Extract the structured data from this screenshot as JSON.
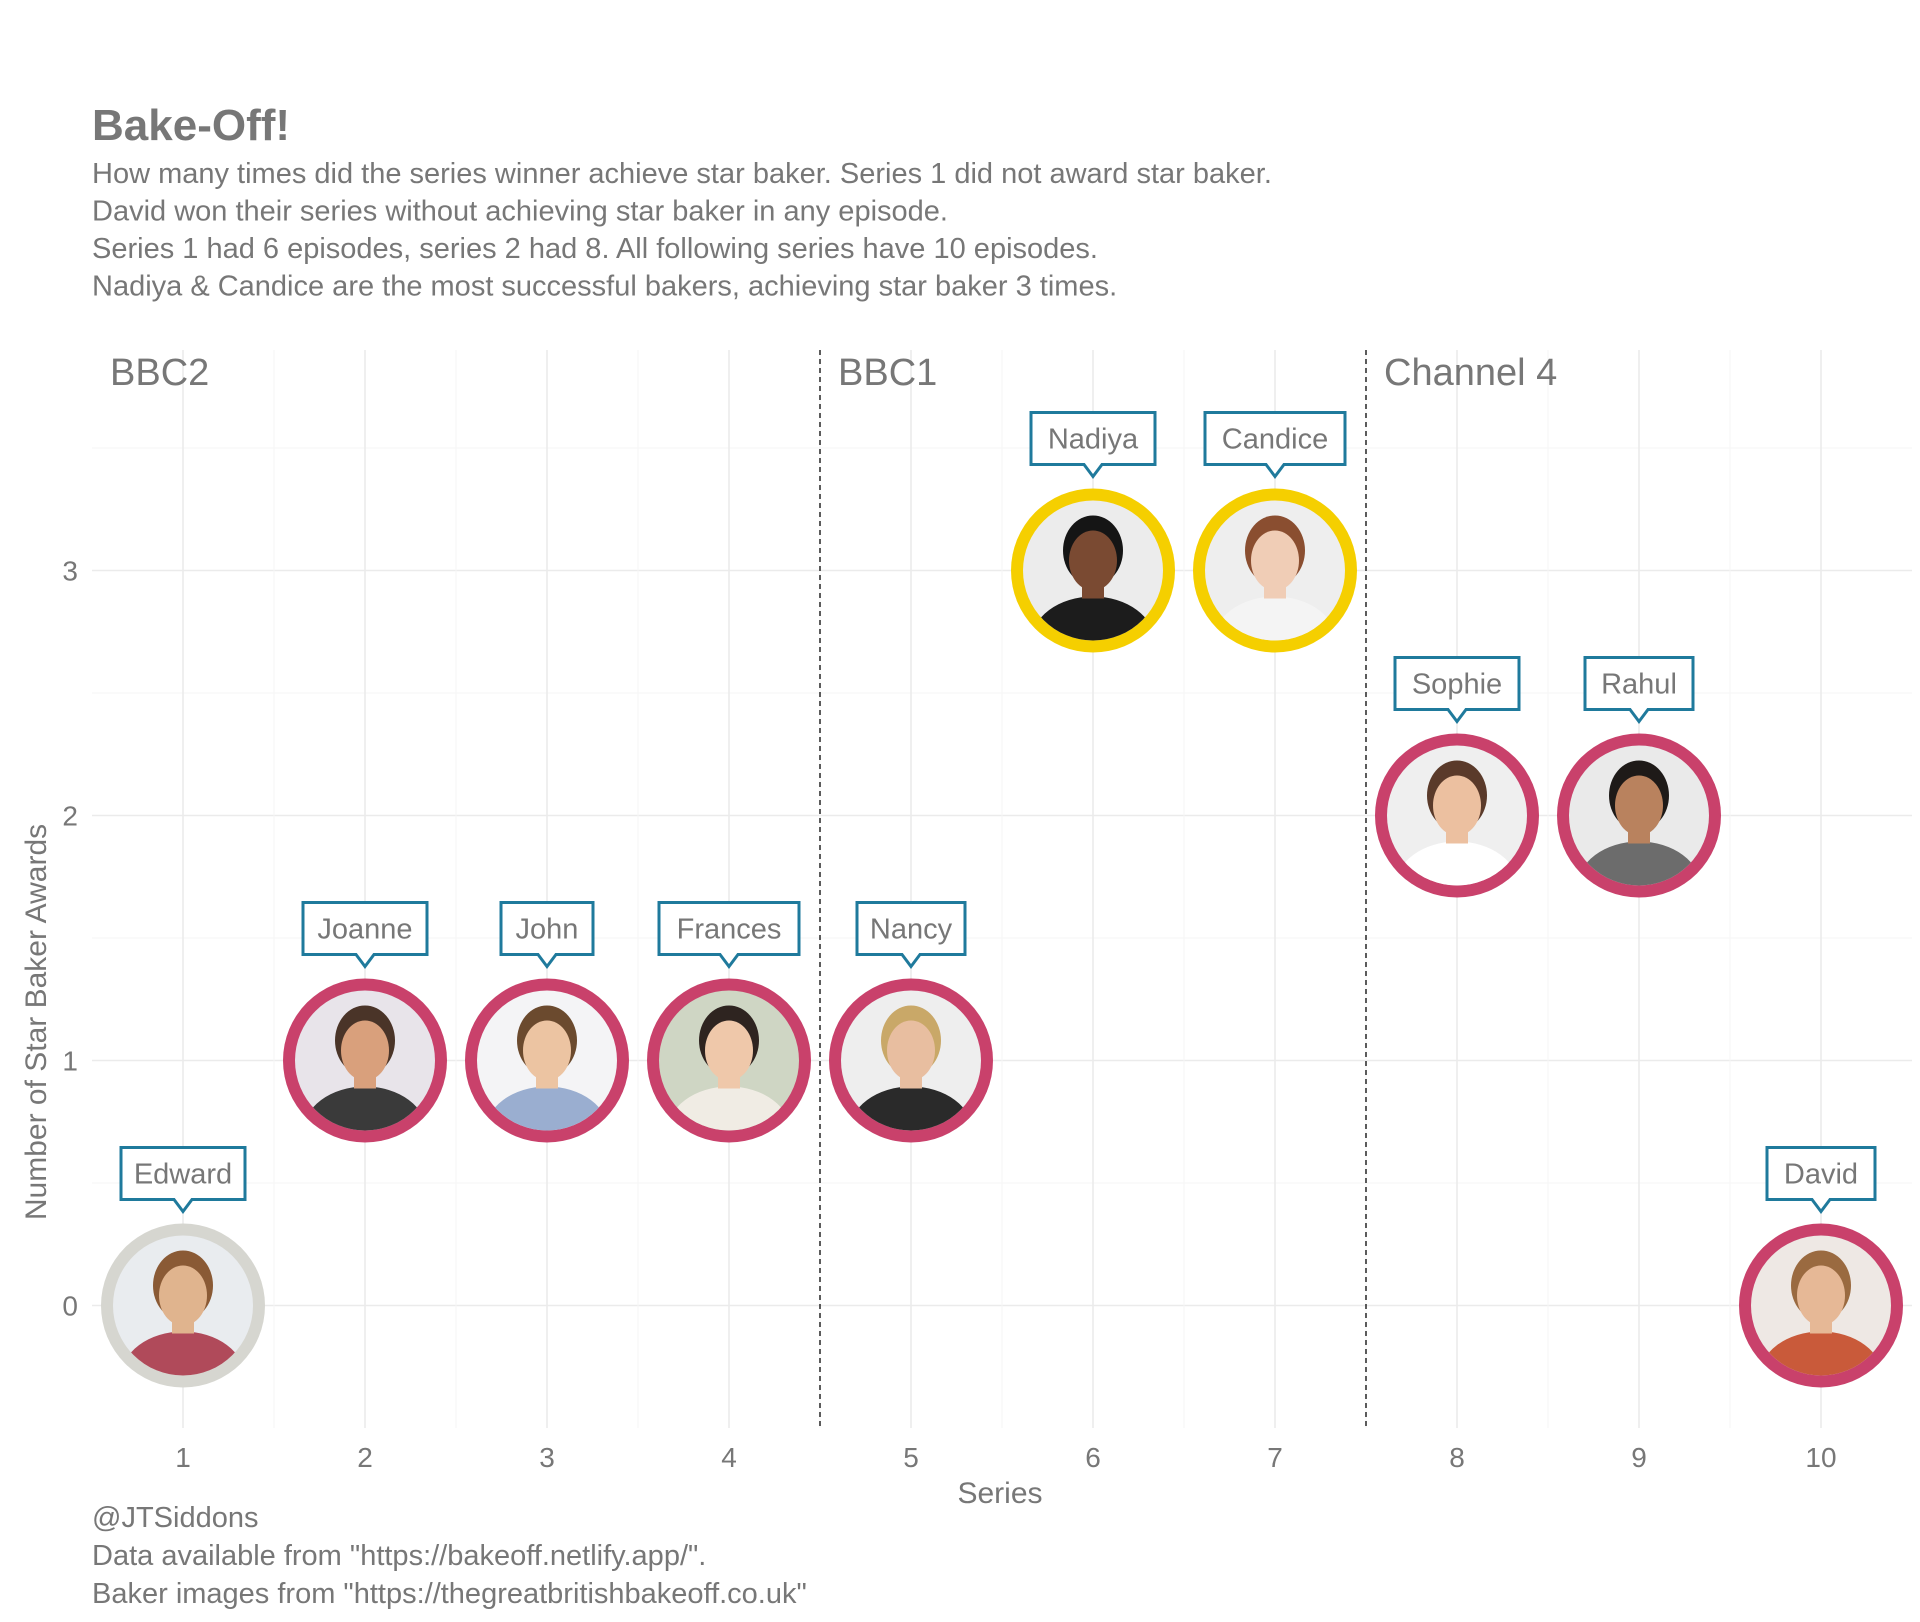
{
  "chart_data": {
    "type": "scatter",
    "title": "Bake-Off!",
    "subtitle": [
      "How many times did the series winner achieve star baker. Series 1 did not award star baker.",
      "David won their series without achieving star baker in any episode.",
      "Series 1 had 6 episodes, series 2 had 8. All following series have 10 episodes.",
      "Nadiya & Candice are the most successful bakers, achieving star baker 3 times."
    ],
    "xlabel": "Series",
    "ylabel": "Number of Star Baker Awards",
    "x_ticks": [
      1,
      2,
      3,
      4,
      5,
      6,
      7,
      8,
      9,
      10
    ],
    "y_ticks": [
      0,
      1,
      2,
      3
    ],
    "xlim": [
      0.5,
      10.5
    ],
    "ylim": [
      -0.5,
      3.9
    ],
    "grid": true,
    "channel_dividers": [
      4.5,
      7.5
    ],
    "channels": [
      {
        "label": "BBC2",
        "from_series": 1
      },
      {
        "label": "BBC1",
        "from_series": 5
      },
      {
        "label": "Channel 4",
        "from_series": 8
      }
    ],
    "points": [
      {
        "series": 1,
        "star_baker": 0,
        "name": "Edward",
        "ring": "#d6d6d0",
        "bg": "#e9ecef",
        "skin": "#e0b48e",
        "hair": "#8a5a35",
        "shirt": "#b04a5a"
      },
      {
        "series": 2,
        "star_baker": 1,
        "name": "Joanne",
        "ring": "#c9416b",
        "bg": "#e8e4ea",
        "skin": "#d9a07c",
        "hair": "#4a3428",
        "shirt": "#3a3a3a"
      },
      {
        "series": 3,
        "star_baker": 1,
        "name": "John",
        "ring": "#c9416b",
        "bg": "#f4f4f6",
        "skin": "#ecc4a2",
        "hair": "#6b4a2e",
        "shirt": "#9aaed0"
      },
      {
        "series": 4,
        "star_baker": 1,
        "name": "Frances",
        "ring": "#c9416b",
        "bg": "#cfd6c4",
        "skin": "#efc8aa",
        "hair": "#2e2420",
        "shirt": "#f0ece4"
      },
      {
        "series": 5,
        "star_baker": 1,
        "name": "Nancy",
        "ring": "#c9416b",
        "bg": "#eeeeee",
        "skin": "#e8bea0",
        "hair": "#c9a868",
        "shirt": "#2a2a2a"
      },
      {
        "series": 6,
        "star_baker": 3,
        "name": "Nadiya",
        "ring": "#f5cf00",
        "bg": "#ececec",
        "skin": "#7a4a32",
        "hair": "#151515",
        "shirt": "#1c1c1c"
      },
      {
        "series": 7,
        "star_baker": 3,
        "name": "Candice",
        "ring": "#f5cf00",
        "bg": "#eeeeee",
        "skin": "#f0cdb6",
        "hair": "#8a4e30",
        "shirt": "#f4f4f4"
      },
      {
        "series": 8,
        "star_baker": 2,
        "name": "Sophie",
        "ring": "#c9416b",
        "bg": "#efefef",
        "skin": "#ecc0a0",
        "hair": "#5a3a2a",
        "shirt": "#ffffff"
      },
      {
        "series": 9,
        "star_baker": 2,
        "name": "Rahul",
        "ring": "#c9416b",
        "bg": "#eaeaea",
        "skin": "#b9825e",
        "hair": "#1e1a18",
        "shirt": "#6c6c6c"
      },
      {
        "series": 10,
        "star_baker": 0,
        "name": "David",
        "ring": "#c9416b",
        "bg": "#eee8e4",
        "skin": "#e6b896",
        "hair": "#9a6a40",
        "shirt": "#c95a3a"
      }
    ],
    "label_border_color": "#1f7a9c",
    "caption": [
      "@JTSiddons",
      "Data available from \"https://bakeoff.netlify.app/\".",
      "Baker images from \"https://thegreatbritishbakeoff.co.uk\""
    ]
  }
}
